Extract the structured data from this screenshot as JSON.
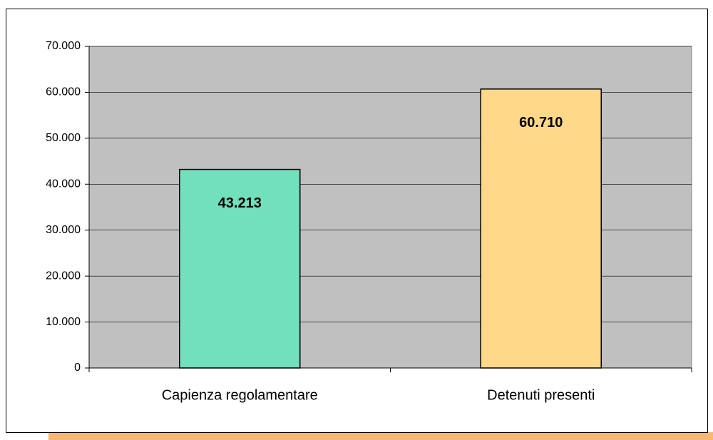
{
  "chart_data": {
    "type": "bar",
    "categories": [
      "Capienza regolamentare",
      "Detenuti presenti"
    ],
    "values": [
      43213,
      60710
    ],
    "value_labels": [
      "43.213",
      "60.710"
    ],
    "colors": [
      "#72dfbd",
      "#ffd88a"
    ],
    "ylim": [
      0,
      70000
    ],
    "yticks": [
      0,
      {
        "value": 10000,
        "label": "10.000"
      },
      {
        "value": 20000,
        "label": "20.000"
      },
      {
        "value": 30000,
        "label": "30.000"
      },
      {
        "value": 40000,
        "label": "40.000"
      },
      {
        "value": 50000,
        "label": "50.000"
      },
      {
        "value": 60000,
        "label": "60.000"
      },
      {
        "value": 70000,
        "label": "70.000"
      }
    ],
    "grid": true
  }
}
